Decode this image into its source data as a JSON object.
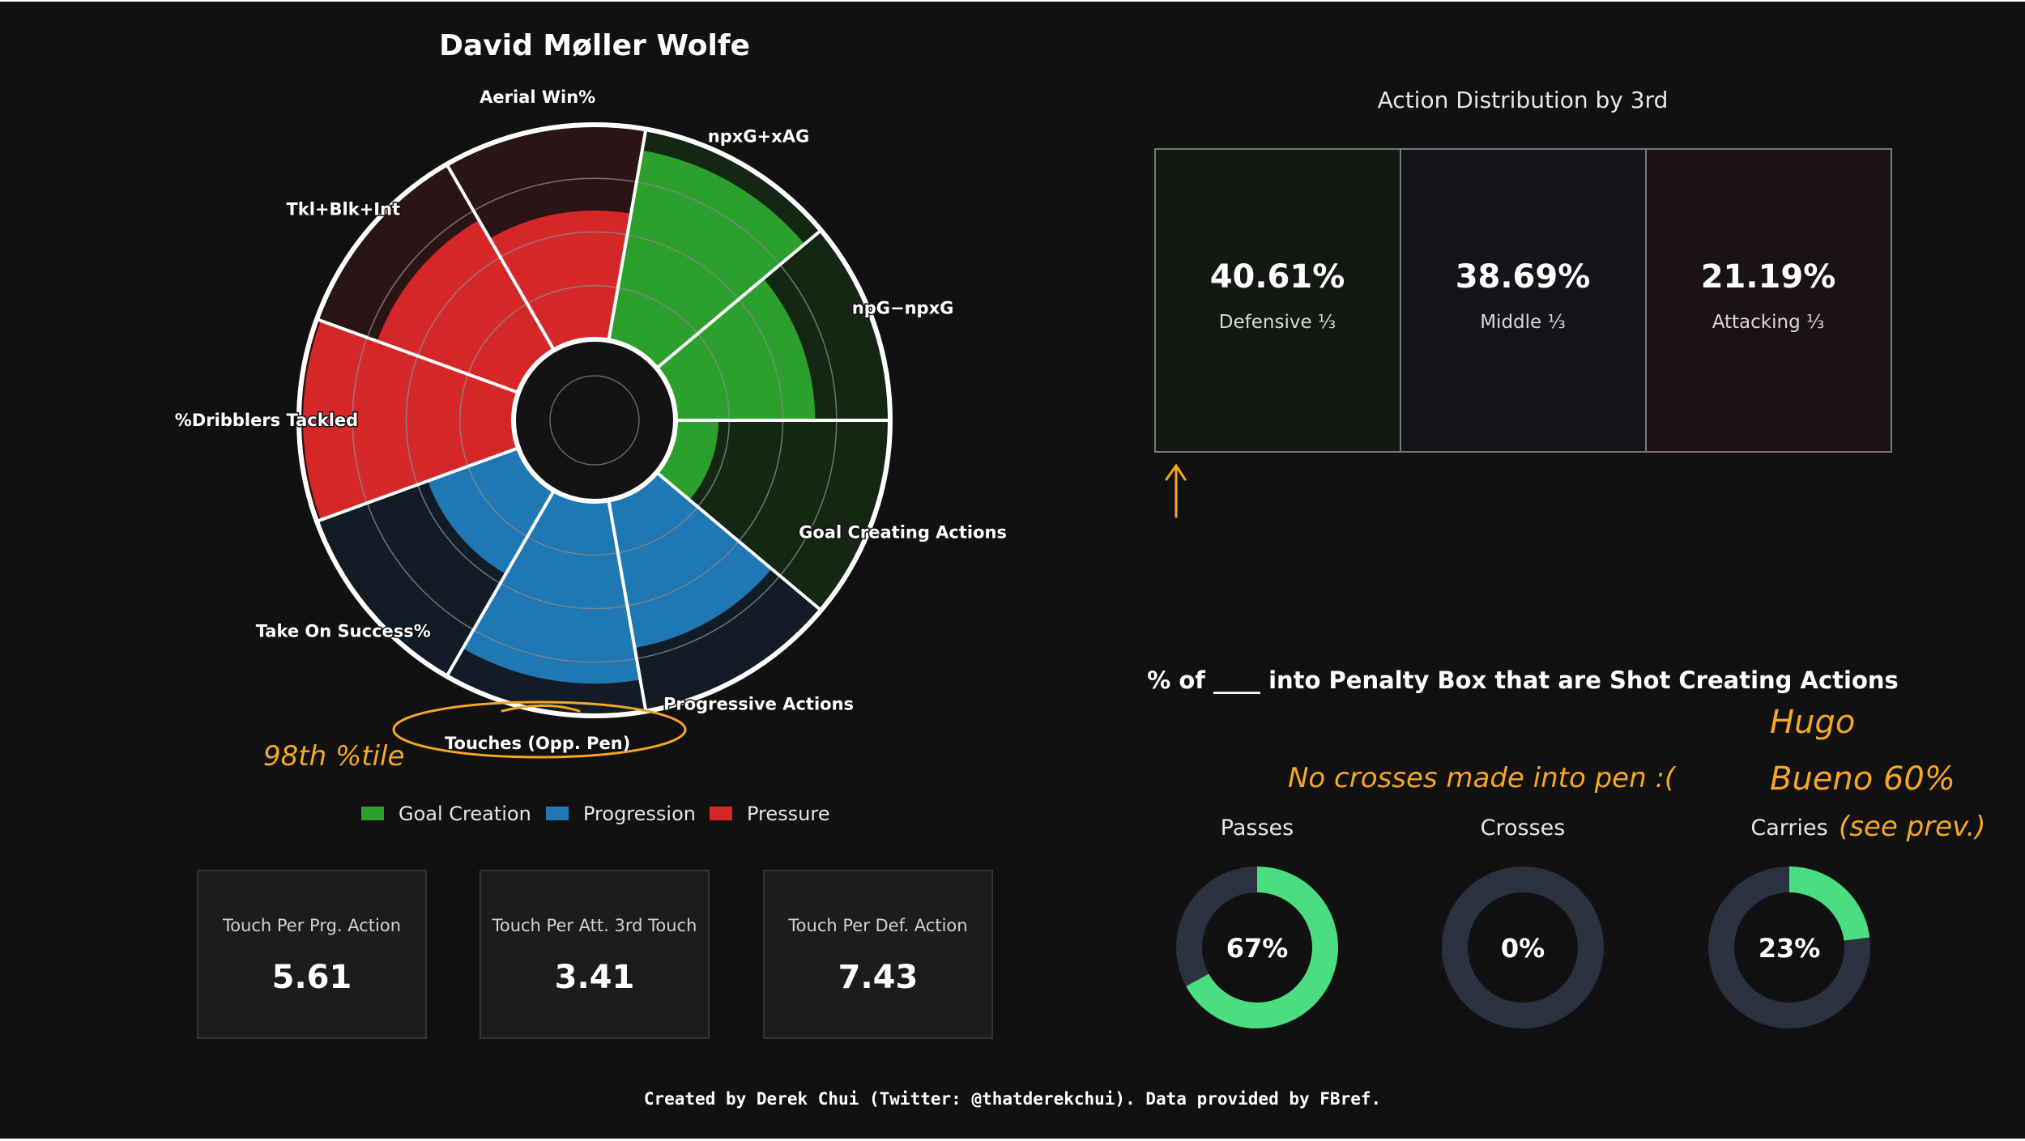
{
  "player_name": "David Møller Wolfe",
  "colors": {
    "background": "#111111",
    "goal_creation": "#2ca02c",
    "progression": "#1f77b4",
    "pressure": "#d62728",
    "donut_fill": "#4ade80",
    "donut_track": "#2a3140",
    "annotation": "#f5a623"
  },
  "chart_data": [
    {
      "type": "radial-bar",
      "title": "David Møller Wolfe",
      "value_unit": "percentile",
      "categories": [
        "npG−npxG",
        "npxG+xAG",
        "Aerial Win%",
        "Tkl+Blk+Int",
        "%Dribblers Tackled",
        "Take On Success%",
        "Touches (Opp. Pen)",
        "Progressive Actions",
        "Goal Creating Actions"
      ],
      "values": [
        65,
        90,
        60,
        70,
        98,
        45,
        85,
        70,
        20
      ],
      "groups": [
        "Goal Creation",
        "Goal Creation",
        "Pressure",
        "Pressure",
        "Pressure",
        "Progression",
        "Progression",
        "Progression",
        "Goal Creation"
      ],
      "ylim": [
        0,
        100
      ],
      "legend": [
        {
          "label": "Goal Creation",
          "color": "#2ca02c"
        },
        {
          "label": "Progression",
          "color": "#1f77b4"
        },
        {
          "label": "Pressure",
          "color": "#d62728"
        }
      ]
    },
    {
      "type": "table",
      "title": "Action Distribution by 3rd",
      "cells": [
        {
          "value": "40.61%",
          "label": "Defensive ⅓"
        },
        {
          "value": "38.69%",
          "label": "Middle ⅓"
        },
        {
          "value": "21.19%",
          "label": "Attacking ⅓"
        }
      ]
    },
    {
      "type": "pie",
      "title": "% of ____ into Penalty Box that are Shot Creating Actions",
      "donuts": [
        {
          "label": "Passes",
          "value": 67,
          "text": "67%"
        },
        {
          "label": "Crosses",
          "value": 0,
          "text": "0%"
        },
        {
          "label": "Carries",
          "value": 23,
          "text": "23%"
        }
      ]
    }
  ],
  "stat_cards": [
    {
      "label": "Touch Per Prg. Action",
      "value": "5.61"
    },
    {
      "label": "Touch Per Att. 3rd Touch",
      "value": "3.41"
    },
    {
      "label": "Touch Per Def. Action",
      "value": "7.43"
    }
  ],
  "annotations": {
    "percentile_note": "98th %tile",
    "crosses_note": "No crosses made into pen :(",
    "hugo_note_line1": "Hugo",
    "hugo_note_line2": "Bueno 60%",
    "hugo_note_line3": "(see prev.)"
  },
  "footer": "Created by Derek Chui (Twitter: @thatderekchui). Data provided by FBref."
}
